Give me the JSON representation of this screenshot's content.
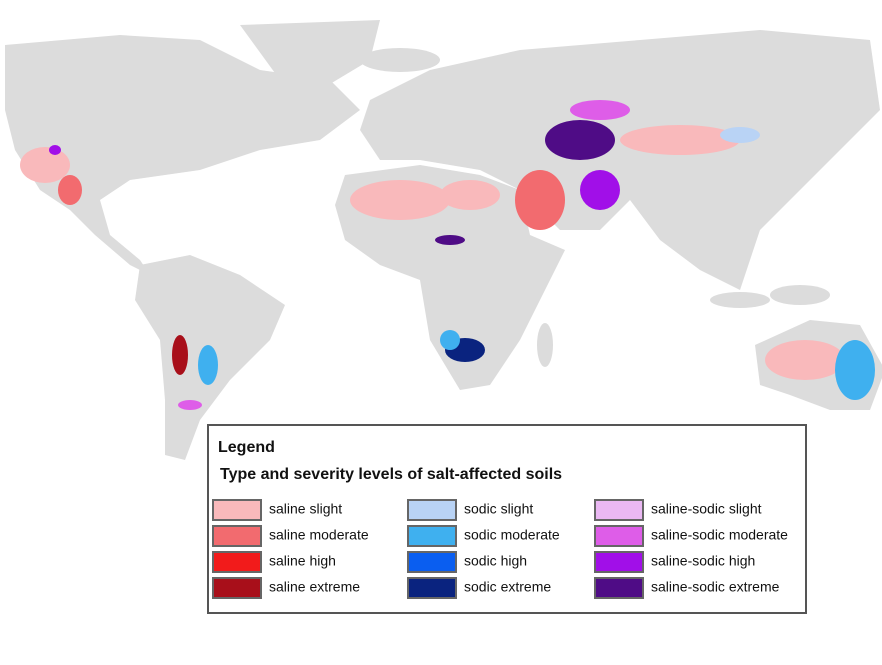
{
  "legend": {
    "title": "Legend",
    "subtitle": "Type and severity levels of salt-affected soils",
    "items": [
      {
        "label": "saline slight",
        "color": "#f9b9bb"
      },
      {
        "label": "saline moderate",
        "color": "#f26b6f"
      },
      {
        "label": "saline high",
        "color": "#f21b1b"
      },
      {
        "label": "saline extreme",
        "color": "#a80f1a"
      },
      {
        "label": "sodic slight",
        "color": "#b9d3f5"
      },
      {
        "label": "sodic moderate",
        "color": "#3fb0ef"
      },
      {
        "label": "sodic high",
        "color": "#0a5ef0"
      },
      {
        "label": "sodic extreme",
        "color": "#0a237f"
      },
      {
        "label": "saline-sodic slight",
        "color": "#eab8f3"
      },
      {
        "label": "saline-sodic moderate",
        "color": "#de5de8"
      },
      {
        "label": "saline-sodic high",
        "color": "#a10fe8"
      },
      {
        "label": "saline-sodic extreme",
        "color": "#4f0c86"
      }
    ]
  }
}
